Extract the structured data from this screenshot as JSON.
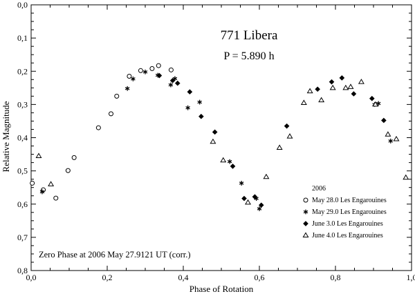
{
  "chart_data": {
    "type": "scatter",
    "title": "771 Libera",
    "subtitle": "P = 5.890 h",
    "xlabel": "Phase of Rotation",
    "ylabel": "Relative Magnitude",
    "xlim": [
      0,
      1
    ],
    "ylim": [
      0,
      0.8
    ],
    "y_inverted": true,
    "x_ticks": [
      "0,0",
      "0,2",
      "0,4",
      "0,6",
      "0,8",
      "1,0"
    ],
    "y_ticks": [
      "0,0",
      "0,1",
      "0,2",
      "0,3",
      "0,4",
      "0,5",
      "0,6",
      "0,7",
      "0,8"
    ],
    "grid": false,
    "legend_position": "bottom-right",
    "legend_title": "2006",
    "annotation": "Zero Phase at 2006 May 27.9121 UT (corr.)",
    "series": [
      {
        "name": "May 28.0 Les Engarouines",
        "marker": "circle-open",
        "points": [
          [
            0.003,
            0.537
          ],
          [
            0.032,
            0.557
          ],
          [
            0.065,
            0.582
          ],
          [
            0.097,
            0.499
          ],
          [
            0.113,
            0.46
          ],
          [
            0.177,
            0.37
          ],
          [
            0.21,
            0.328
          ],
          [
            0.225,
            0.275
          ],
          [
            0.258,
            0.215
          ],
          [
            0.288,
            0.198
          ],
          [
            0.318,
            0.192
          ],
          [
            0.335,
            0.183
          ],
          [
            0.368,
            0.196
          ]
        ]
      },
      {
        "name": "May 29.0 Les Engarouines",
        "marker": "asterisk",
        "points": [
          [
            0.029,
            0.563
          ],
          [
            0.253,
            0.252
          ],
          [
            0.268,
            0.223
          ],
          [
            0.3,
            0.202
          ],
          [
            0.333,
            0.212
          ],
          [
            0.367,
            0.241
          ],
          [
            0.378,
            0.222
          ],
          [
            0.412,
            0.31
          ],
          [
            0.443,
            0.293
          ],
          [
            0.522,
            0.472
          ],
          [
            0.553,
            0.537
          ],
          [
            0.592,
            0.583
          ],
          [
            0.6,
            0.614
          ],
          [
            0.903,
            0.3
          ],
          [
            0.913,
            0.297
          ],
          [
            0.945,
            0.41
          ]
        ]
      },
      {
        "name": "June 3.0 Les Engarouines",
        "marker": "diamond-filled",
        "points": [
          [
            0.337,
            0.213
          ],
          [
            0.372,
            0.228
          ],
          [
            0.385,
            0.236
          ],
          [
            0.417,
            0.262
          ],
          [
            0.447,
            0.336
          ],
          [
            0.483,
            0.383
          ],
          [
            0.53,
            0.486
          ],
          [
            0.56,
            0.583
          ],
          [
            0.588,
            0.578
          ],
          [
            0.605,
            0.603
          ],
          [
            0.672,
            0.365
          ],
          [
            0.753,
            0.254
          ],
          [
            0.79,
            0.232
          ],
          [
            0.817,
            0.22
          ],
          [
            0.848,
            0.268
          ],
          [
            0.896,
            0.282
          ],
          [
            0.927,
            0.348
          ]
        ]
      },
      {
        "name": "June 4.0 Les Engarouines",
        "marker": "triangle-open",
        "points": [
          [
            0.02,
            0.455
          ],
          [
            0.052,
            0.54
          ],
          [
            0.478,
            0.412
          ],
          [
            0.505,
            0.468
          ],
          [
            0.57,
            0.595
          ],
          [
            0.618,
            0.518
          ],
          [
            0.653,
            0.43
          ],
          [
            0.68,
            0.396
          ],
          [
            0.717,
            0.295
          ],
          [
            0.733,
            0.26
          ],
          [
            0.763,
            0.287
          ],
          [
            0.793,
            0.25
          ],
          [
            0.827,
            0.25
          ],
          [
            0.84,
            0.247
          ],
          [
            0.868,
            0.232
          ],
          [
            0.905,
            0.3
          ],
          [
            0.938,
            0.39
          ],
          [
            0.96,
            0.404
          ],
          [
            0.985,
            0.52
          ]
        ]
      }
    ]
  }
}
